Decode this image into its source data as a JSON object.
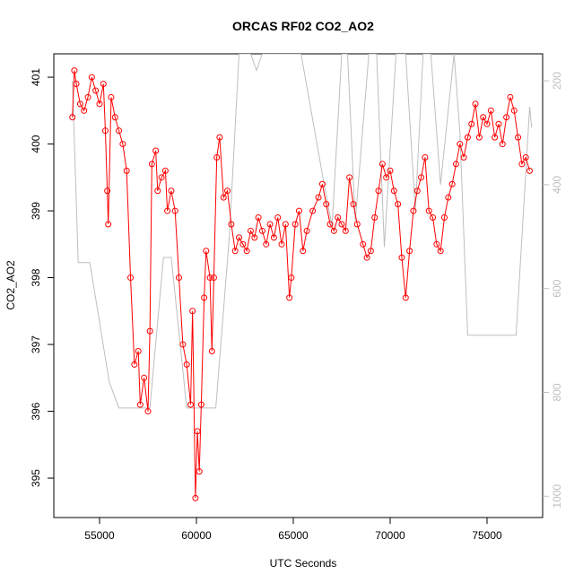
{
  "chart_data": {
    "type": "line",
    "title": "ORCAS RF02 CO2_AO2",
    "x_label": "UTC Seconds",
    "y_label": "CO2_AO2",
    "xlim": [
      52640,
      77870
    ],
    "ylim": [
      394.41,
      401.35
    ],
    "y2lim": [
      1041,
      148
    ],
    "xticks": [
      55000,
      60000,
      65000,
      70000,
      75000
    ],
    "yticks": [
      395,
      396,
      397,
      398,
      399,
      400,
      401
    ],
    "y2ticks": [
      200,
      400,
      600,
      800,
      1000
    ],
    "series": [
      {
        "color": "#ff0000",
        "markers": true,
        "x": [
          53600,
          53700,
          53800,
          54000,
          54200,
          54400,
          54600,
          54800,
          55000,
          55200,
          55300,
          55400,
          55450,
          55600,
          55800,
          56000,
          56200,
          56400,
          56600,
          56800,
          57000,
          57100,
          57300,
          57500,
          57600,
          57700,
          57900,
          58000,
          58200,
          58400,
          58500,
          58700,
          58900,
          59100,
          59300,
          59500,
          59700,
          59800,
          59950,
          60050,
          60150,
          60250,
          60400,
          60500,
          60700,
          60800,
          60900,
          61050,
          61200,
          61400,
          61600,
          61800,
          62000,
          62200,
          62400,
          62600,
          62800,
          63000,
          63200,
          63400,
          63600,
          63800,
          64000,
          64200,
          64400,
          64600,
          64800,
          64900,
          65100,
          65300,
          65500,
          65700,
          66000,
          66300,
          66500,
          66700,
          66900,
          67100,
          67300,
          67500,
          67700,
          67900,
          68100,
          68300,
          68600,
          68800,
          69000,
          69200,
          69400,
          69600,
          69800,
          70000,
          70200,
          70400,
          70600,
          70800,
          71000,
          71200,
          71400,
          71600,
          71800,
          72000,
          72200,
          72400,
          72600,
          72800,
          73000,
          73200,
          73400,
          73600,
          73800,
          74000,
          74200,
          74400,
          74600,
          74800,
          75000,
          75200,
          75400,
          75600,
          75800,
          76000,
          76200,
          76400,
          76600,
          76800,
          77000,
          77200
        ],
        "values": [
          400.4,
          401.1,
          400.9,
          400.6,
          400.5,
          400.7,
          401.0,
          400.8,
          400.6,
          400.9,
          400.2,
          399.3,
          398.8,
          400.7,
          400.4,
          400.2,
          400.0,
          399.6,
          398.0,
          396.7,
          396.9,
          396.1,
          396.5,
          396.0,
          397.2,
          399.7,
          399.9,
          399.3,
          399.5,
          399.6,
          399.0,
          399.3,
          399.0,
          398.0,
          397.0,
          396.7,
          396.1,
          397.5,
          394.7,
          395.7,
          395.1,
          396.1,
          397.7,
          398.4,
          398.0,
          396.9,
          398.0,
          399.8,
          400.1,
          399.2,
          399.3,
          398.8,
          398.4,
          398.6,
          398.5,
          398.4,
          398.7,
          398.6,
          398.9,
          398.7,
          398.5,
          398.8,
          398.6,
          398.9,
          398.5,
          398.8,
          397.7,
          398.0,
          398.8,
          399.0,
          398.4,
          398.7,
          399.0,
          399.2,
          399.4,
          399.1,
          398.8,
          398.7,
          398.9,
          398.8,
          398.7,
          399.5,
          399.1,
          398.8,
          398.5,
          398.3,
          398.4,
          398.9,
          399.3,
          399.7,
          399.5,
          399.6,
          399.3,
          399.1,
          398.3,
          397.7,
          398.4,
          399.0,
          399.3,
          399.5,
          399.8,
          399.0,
          398.9,
          398.5,
          398.4,
          398.9,
          399.2,
          399.4,
          399.7,
          400.0,
          399.8,
          400.1,
          400.3,
          400.6,
          400.1,
          400.4,
          400.3,
          400.5,
          400.1,
          400.3,
          400.0,
          400.4,
          400.7,
          400.5,
          400.1,
          399.7,
          399.8,
          399.6
        ]
      },
      {
        "color": "#bebebe",
        "axis": "y2",
        "markers": false,
        "x": [
          53600,
          53900,
          54500,
          55500,
          56000,
          57600,
          58300,
          58700,
          59500,
          61000,
          61700,
          62200,
          62800,
          63100,
          63400,
          65400,
          66500,
          67000,
          67500,
          67800,
          68200,
          68900,
          69300,
          69700,
          70300,
          70800,
          71300,
          71700,
          72100,
          72600,
          73300,
          73600,
          74000,
          76500,
          77200,
          77300
        ],
        "values": [
          200,
          550,
          550,
          780,
          830,
          830,
          540,
          540,
          830,
          830,
          500,
          148,
          148,
          180,
          148,
          148,
          380,
          480,
          148,
          148,
          470,
          148,
          148,
          520,
          148,
          148,
          450,
          148,
          148,
          400,
          148,
          300,
          690,
          690,
          250,
          290
        ]
      }
    ]
  }
}
